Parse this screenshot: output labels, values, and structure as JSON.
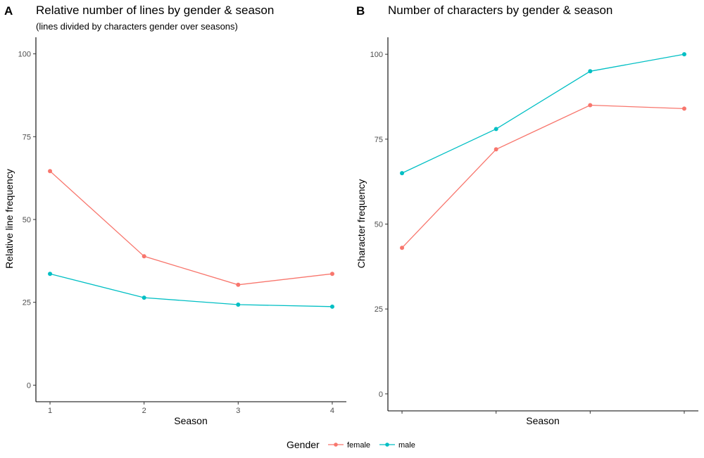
{
  "colors": {
    "female": "#F8766D",
    "male": "#00BFC4",
    "axis": "#000000",
    "tick_text": "#4d4d4d"
  },
  "legend": {
    "title": "Gender",
    "entries": [
      {
        "label": "female",
        "color": "#F8766D"
      },
      {
        "label": "male",
        "color": "#00BFC4"
      }
    ],
    "position": "bottom"
  },
  "chart_data": [
    {
      "tag": "A",
      "type": "line",
      "title": "Relative number of lines by gender & season",
      "subtitle": "(lines divided by characters gender over seasons)",
      "xlabel": "Season",
      "ylabel": "Relative line frequency",
      "x": [
        1,
        2,
        3,
        4
      ],
      "x_tick_labels": [
        "1",
        "2",
        "3",
        "4"
      ],
      "y_ticks": [
        0,
        25,
        50,
        75,
        100
      ],
      "ylim": [
        -5,
        105
      ],
      "xlim": [
        0.85,
        4.15
      ],
      "grid": false,
      "series": [
        {
          "name": "female",
          "values": [
            64.6,
            38.9,
            30.3,
            33.6
          ]
        },
        {
          "name": "male",
          "values": [
            33.6,
            26.4,
            24.3,
            23.7
          ]
        }
      ]
    },
    {
      "tag": "B",
      "type": "line",
      "title": "Number of characters by gender & season",
      "subtitle": "",
      "xlabel": "Season",
      "ylabel": "Character frequency",
      "x": [
        1,
        2,
        3,
        4
      ],
      "x_tick_labels": [
        "",
        "",
        "",
        ""
      ],
      "y_ticks": [
        0,
        25,
        50,
        75,
        100
      ],
      "ylim": [
        -5,
        105
      ],
      "xlim": [
        0.85,
        4.15
      ],
      "grid": false,
      "series": [
        {
          "name": "female",
          "values": [
            43,
            72,
            85,
            84
          ]
        },
        {
          "name": "male",
          "values": [
            65,
            78,
            95,
            100
          ]
        }
      ]
    }
  ]
}
